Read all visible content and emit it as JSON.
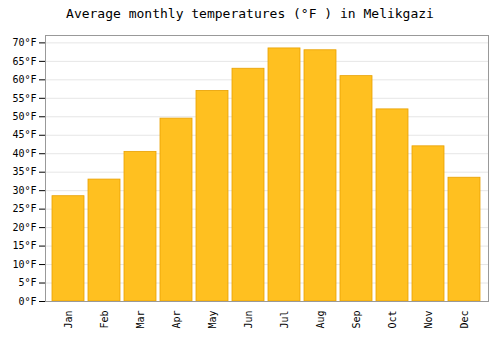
{
  "chart_data": {
    "type": "bar",
    "title": "Average monthly temperatures (°F ) in Melikgazi",
    "categories": [
      "Jan",
      "Feb",
      "Mar",
      "Apr",
      "May",
      "Jun",
      "Jul",
      "Aug",
      "Sep",
      "Oct",
      "Nov",
      "Dec"
    ],
    "values": [
      28.5,
      33,
      40.5,
      49.5,
      57,
      63,
      68.5,
      68,
      61,
      52,
      42,
      33.5
    ],
    "color": "#FFC020",
    "ylim": [
      0,
      72
    ],
    "yticks": [
      {
        "value": 0,
        "label": "0°F"
      },
      {
        "value": 5,
        "label": "5°F"
      },
      {
        "value": 10,
        "label": "10°F"
      },
      {
        "value": 15,
        "label": "15°F"
      },
      {
        "value": 20,
        "label": "20°F"
      },
      {
        "value": 25,
        "label": "25°F"
      },
      {
        "value": 30,
        "label": "30°F"
      },
      {
        "value": 35,
        "label": "35°F"
      },
      {
        "value": 40,
        "label": "40°F"
      },
      {
        "value": 45,
        "label": "45°F"
      },
      {
        "value": 50,
        "label": "50°F"
      },
      {
        "value": 55,
        "label": "55°F"
      },
      {
        "value": 60,
        "label": "60°F"
      },
      {
        "value": 65,
        "label": "65°F"
      },
      {
        "value": 70,
        "label": "70°F"
      }
    ],
    "grid": true
  }
}
